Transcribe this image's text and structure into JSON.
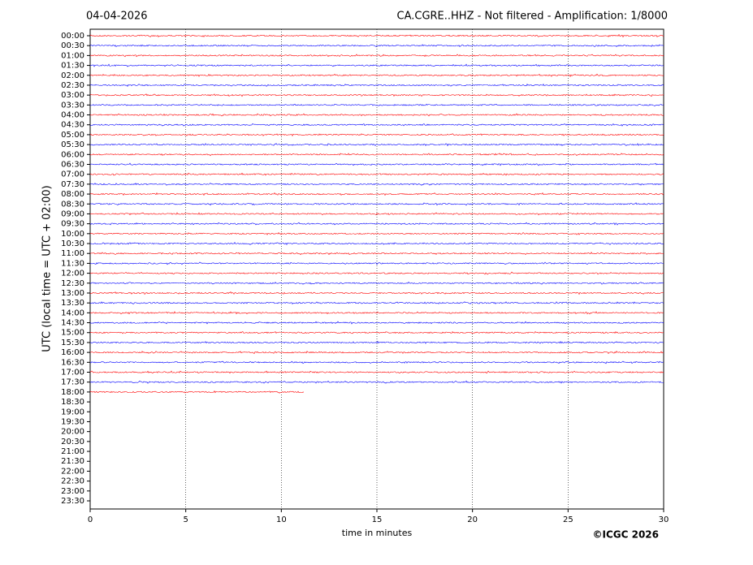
{
  "chart_data": {
    "type": "helicorder",
    "date": "04-04-2026",
    "title": "CA.CGRE..HHZ - Not filtered - Amplification: 1/8000",
    "ylabel": "UTC (local time = UTC + 02:00)",
    "xlabel": "time in minutes",
    "credit": "©ICGC 2026",
    "categories": [
      "00:00",
      "00:30",
      "01:00",
      "01:30",
      "02:00",
      "02:30",
      "03:00",
      "03:30",
      "04:00",
      "04:30",
      "05:00",
      "05:30",
      "06:00",
      "06:30",
      "07:00",
      "07:30",
      "08:00",
      "08:30",
      "09:00",
      "09:30",
      "10:00",
      "10:30",
      "11:00",
      "11:30",
      "12:00",
      "12:30",
      "13:00",
      "13:30",
      "14:00",
      "14:30",
      "15:00",
      "15:30",
      "16:00",
      "16:30",
      "17:00",
      "17:30",
      "18:00",
      "18:30",
      "19:00",
      "19:30",
      "20:00",
      "20:30",
      "21:00",
      "21:30",
      "22:00",
      "22:30",
      "23:00",
      "23:30"
    ],
    "values": [
      30,
      30,
      30,
      30,
      30,
      30,
      30,
      30,
      30,
      30,
      30,
      30,
      30,
      30,
      30,
      30,
      30,
      30,
      30,
      30,
      30,
      30,
      30,
      30,
      30,
      30,
      30,
      30,
      30,
      30,
      30,
      30,
      30,
      30,
      30,
      30,
      11.2,
      null,
      null,
      null,
      null,
      null,
      null,
      null,
      null,
      null,
      null,
      null
    ],
    "colors": [
      "#ff0000",
      "#0000ff"
    ],
    "xlim": [
      0,
      30
    ],
    "xticks": [
      0,
      5,
      10,
      15,
      20,
      25,
      30
    ],
    "grid": true
  }
}
